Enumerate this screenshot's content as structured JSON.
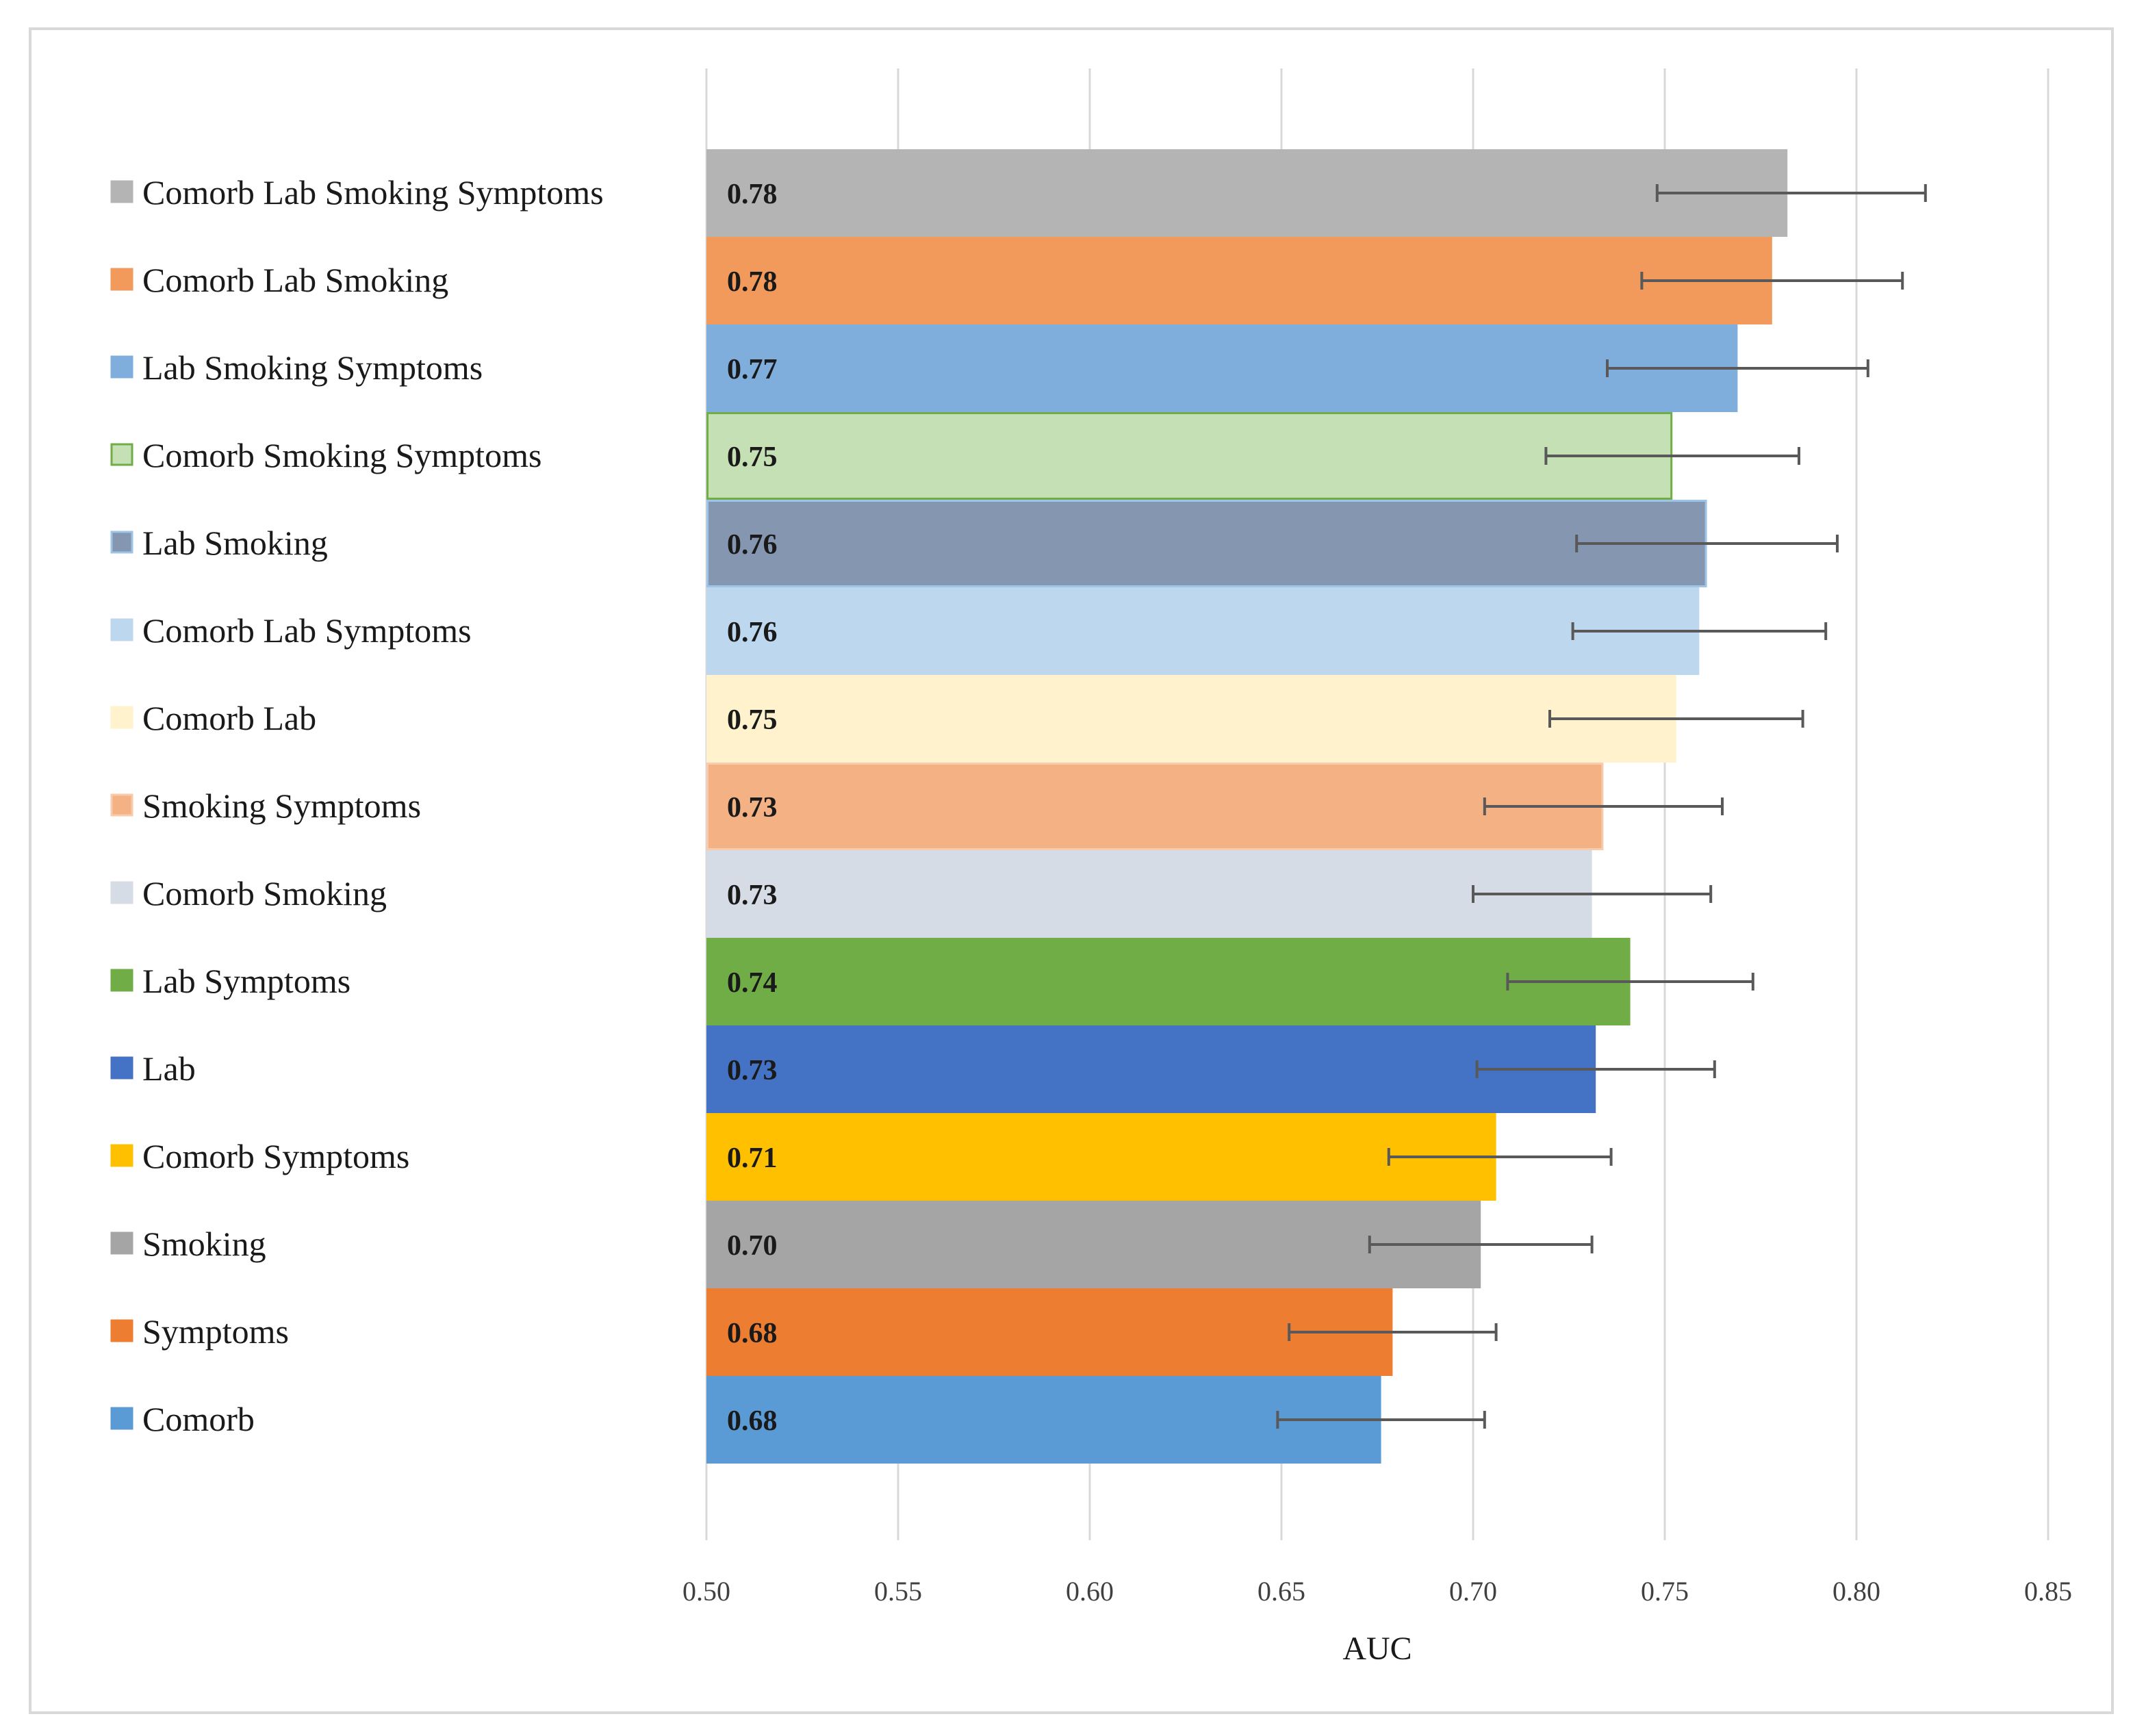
{
  "chart_data": {
    "type": "bar",
    "orientation": "horizontal",
    "title": "",
    "xlabel": "AUC",
    "ylabel": "",
    "xlim": [
      0.5,
      0.85
    ],
    "xticks": [
      "0.50",
      "0.55",
      "0.60",
      "0.65",
      "0.70",
      "0.75",
      "0.80",
      "0.85"
    ],
    "grid": true,
    "legend_position": "left",
    "bars": [
      {
        "label": "Comorb Lab Smoking Symptoms",
        "value": 0.782,
        "display": "0.78",
        "err_low": 0.748,
        "err_high": 0.818,
        "color": "#b4b4b4",
        "edge": "#b4b4b4"
      },
      {
        "label": "Comorb Lab Smoking",
        "value": 0.778,
        "display": "0.78",
        "err_low": 0.744,
        "err_high": 0.812,
        "color": "#f2995c",
        "edge": "#f2995c"
      },
      {
        "label": "Lab Smoking Symptoms",
        "value": 0.769,
        "display": "0.77",
        "err_low": 0.735,
        "err_high": 0.803,
        "color": "#7faedd",
        "edge": "#7faedd"
      },
      {
        "label": "Comorb Smoking Symptoms",
        "value": 0.752,
        "display": "0.75",
        "err_low": 0.719,
        "err_high": 0.785,
        "color": "#c5e0b4",
        "edge": "#70ad47"
      },
      {
        "label": "Lab Smoking",
        "value": 0.761,
        "display": "0.76",
        "err_low": 0.727,
        "err_high": 0.795,
        "color": "#8496b0",
        "edge": "#9dc3e6"
      },
      {
        "label": "Comorb Lab Symptoms",
        "value": 0.759,
        "display": "0.76",
        "err_low": 0.726,
        "err_high": 0.792,
        "color": "#bdd7ee",
        "edge": "#bdd7ee"
      },
      {
        "label": "Comorb Lab",
        "value": 0.753,
        "display": "0.75",
        "err_low": 0.72,
        "err_high": 0.786,
        "color": "#fff2cc",
        "edge": "#fff2cc"
      },
      {
        "label": "Smoking Symptoms",
        "value": 0.734,
        "display": "0.73",
        "err_low": 0.703,
        "err_high": 0.765,
        "color": "#f4b183",
        "edge": "#f8cbad"
      },
      {
        "label": "Comorb Smoking",
        "value": 0.731,
        "display": "0.73",
        "err_low": 0.7,
        "err_high": 0.762,
        "color": "#d6dce5",
        "edge": "#d6dce5"
      },
      {
        "label": "Lab Symptoms",
        "value": 0.741,
        "display": "0.74",
        "err_low": 0.709,
        "err_high": 0.773,
        "color": "#70ad47",
        "edge": "#70ad47"
      },
      {
        "label": "Lab",
        "value": 0.732,
        "display": "0.73",
        "err_low": 0.701,
        "err_high": 0.763,
        "color": "#4472c4",
        "edge": "#4472c4"
      },
      {
        "label": "Comorb Symptoms",
        "value": 0.706,
        "display": "0.71",
        "err_low": 0.678,
        "err_high": 0.736,
        "color": "#ffc000",
        "edge": "#ffc000"
      },
      {
        "label": "Smoking",
        "value": 0.702,
        "display": "0.70",
        "err_low": 0.673,
        "err_high": 0.731,
        "color": "#a5a5a5",
        "edge": "#a5a5a5"
      },
      {
        "label": "Symptoms",
        "value": 0.679,
        "display": "0.68",
        "err_low": 0.652,
        "err_high": 0.706,
        "color": "#ed7d31",
        "edge": "#ed7d31"
      },
      {
        "label": "Comorb",
        "value": 0.676,
        "display": "0.68",
        "err_low": 0.649,
        "err_high": 0.703,
        "color": "#5b9bd5",
        "edge": "#5b9bd5"
      }
    ]
  }
}
